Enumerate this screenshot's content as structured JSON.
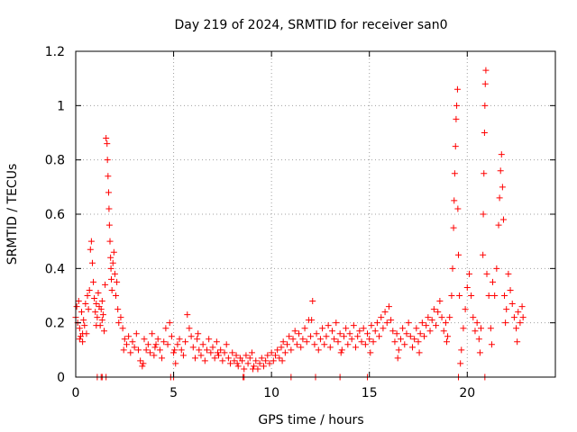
{
  "chart_data": {
    "type": "scatter",
    "title": "Day 219 of 2024, SRMTID for receiver san0",
    "xlabel": "GPS time / hours",
    "ylabel": "SRMTID / TECUs",
    "xlim": [
      0,
      24.5
    ],
    "ylim": [
      0,
      1.2
    ],
    "xticks": [
      0,
      5,
      10,
      15,
      20
    ],
    "xtick_labels": [
      "0",
      "5",
      "10",
      "15",
      "20"
    ],
    "yticks": [
      0,
      0.2,
      0.4,
      0.6,
      0.8,
      1.0,
      1.2
    ],
    "ytick_labels": [
      "0",
      "0.2",
      "0.4",
      "0.6",
      "0.8",
      "1",
      "1.2"
    ],
    "grid": true,
    "marker": "+",
    "color": "#ff0000",
    "series": [
      {
        "name": "SRMTID",
        "points": [
          [
            0.0,
            0.22
          ],
          [
            0.05,
            0.26
          ],
          [
            0.1,
            0.2
          ],
          [
            0.15,
            0.28
          ],
          [
            0.2,
            0.18
          ],
          [
            0.25,
            0.15
          ],
          [
            0.3,
            0.24
          ],
          [
            0.35,
            0.13
          ],
          [
            0.4,
            0.21
          ],
          [
            0.45,
            0.19
          ],
          [
            0.5,
            0.27
          ],
          [
            0.55,
            0.16
          ],
          [
            0.6,
            0.3
          ],
          [
            0.65,
            0.25
          ],
          [
            0.7,
            0.32
          ],
          [
            0.75,
            0.47
          ],
          [
            0.8,
            0.5
          ],
          [
            0.85,
            0.42
          ],
          [
            0.9,
            0.35
          ],
          [
            0.95,
            0.29
          ],
          [
            1.0,
            0.24
          ],
          [
            1.05,
            0.27
          ],
          [
            1.1,
            0.22
          ],
          [
            1.15,
            0.31
          ],
          [
            1.2,
            0.26
          ],
          [
            1.25,
            0.19
          ],
          [
            1.3,
            0.25
          ],
          [
            1.35,
            0.21
          ],
          [
            1.4,
            0.23
          ],
          [
            1.45,
            0.17
          ],
          [
            1.5,
            0.34
          ],
          [
            1.55,
            0.88
          ],
          [
            1.6,
            0.86
          ],
          [
            1.62,
            0.8
          ],
          [
            1.65,
            0.74
          ],
          [
            1.68,
            0.68
          ],
          [
            1.7,
            0.62
          ],
          [
            1.72,
            0.56
          ],
          [
            1.75,
            0.5
          ],
          [
            1.78,
            0.44
          ],
          [
            1.8,
            0.4
          ],
          [
            1.82,
            0.36
          ],
          [
            1.85,
            0.32
          ],
          [
            1.9,
            0.42
          ],
          [
            1.95,
            0.46
          ],
          [
            2.0,
            0.38
          ],
          [
            2.05,
            0.3
          ],
          [
            2.1,
            0.35
          ],
          [
            2.15,
            0.25
          ],
          [
            2.2,
            0.2
          ],
          [
            2.3,
            0.22
          ],
          [
            2.4,
            0.18
          ],
          [
            2.5,
            0.14
          ],
          [
            2.6,
            0.12
          ],
          [
            2.7,
            0.15
          ],
          [
            2.8,
            0.09
          ],
          [
            2.9,
            0.13
          ],
          [
            3.0,
            0.11
          ],
          [
            3.1,
            0.16
          ],
          [
            3.2,
            0.1
          ],
          [
            3.3,
            0.06
          ],
          [
            3.4,
            0.04
          ],
          [
            3.5,
            0.14
          ],
          [
            3.6,
            0.1
          ],
          [
            3.7,
            0.12
          ],
          [
            3.8,
            0.09
          ],
          [
            3.9,
            0.16
          ],
          [
            4.0,
            0.08
          ],
          [
            4.1,
            0.12
          ],
          [
            4.2,
            0.14
          ],
          [
            4.3,
            0.1
          ],
          [
            4.4,
            0.07
          ],
          [
            4.5,
            0.13
          ],
          [
            4.6,
            0.18
          ],
          [
            4.7,
            0.12
          ],
          [
            4.8,
            0.2
          ],
          [
            4.9,
            0.15
          ],
          [
            5.0,
            0.09
          ],
          [
            5.1,
            0.05
          ],
          [
            5.2,
            0.12
          ],
          [
            5.3,
            0.14
          ],
          [
            5.4,
            0.1
          ],
          [
            5.5,
            0.08
          ],
          [
            5.6,
            0.13
          ],
          [
            5.7,
            0.23
          ],
          [
            5.8,
            0.18
          ],
          [
            5.9,
            0.15
          ],
          [
            6.0,
            0.11
          ],
          [
            6.1,
            0.07
          ],
          [
            6.2,
            0.14
          ],
          [
            6.3,
            0.1
          ],
          [
            6.4,
            0.08
          ],
          [
            6.5,
            0.12
          ],
          [
            6.6,
            0.06
          ],
          [
            6.7,
            0.1
          ],
          [
            6.8,
            0.14
          ],
          [
            6.9,
            0.09
          ],
          [
            7.0,
            0.11
          ],
          [
            7.1,
            0.07
          ],
          [
            7.2,
            0.13
          ],
          [
            7.3,
            0.08
          ],
          [
            7.4,
            0.1
          ],
          [
            7.5,
            0.06
          ],
          [
            7.6,
            0.09
          ],
          [
            7.7,
            0.12
          ],
          [
            7.8,
            0.07
          ],
          [
            7.9,
            0.05
          ],
          [
            8.0,
            0.09
          ],
          [
            8.1,
            0.06
          ],
          [
            8.2,
            0.08
          ],
          [
            8.3,
            0.04
          ],
          [
            8.4,
            0.07
          ],
          [
            8.5,
            0.06
          ],
          [
            8.6,
            0.03
          ],
          [
            8.7,
            0.08
          ],
          [
            8.8,
            0.05
          ],
          [
            8.9,
            0.07
          ],
          [
            9.0,
            0.09
          ],
          [
            9.1,
            0.04
          ],
          [
            9.2,
            0.06
          ],
          [
            9.3,
            0.03
          ],
          [
            9.4,
            0.05
          ],
          [
            9.5,
            0.07
          ],
          [
            9.6,
            0.04
          ],
          [
            9.7,
            0.06
          ],
          [
            9.8,
            0.08
          ],
          [
            9.9,
            0.05
          ],
          [
            10.0,
            0.09
          ],
          [
            10.1,
            0.06
          ],
          [
            10.2,
            0.08
          ],
          [
            10.3,
            0.1
          ],
          [
            10.4,
            0.07
          ],
          [
            10.5,
            0.11
          ],
          [
            10.6,
            0.13
          ],
          [
            10.7,
            0.09
          ],
          [
            10.8,
            0.12
          ],
          [
            10.9,
            0.15
          ],
          [
            11.0,
            0.1
          ],
          [
            11.1,
            0.14
          ],
          [
            11.2,
            0.17
          ],
          [
            11.3,
            0.12
          ],
          [
            11.4,
            0.16
          ],
          [
            11.5,
            0.11
          ],
          [
            11.6,
            0.14
          ],
          [
            11.7,
            0.18
          ],
          [
            11.8,
            0.13
          ],
          [
            11.9,
            0.21
          ],
          [
            12.0,
            0.15
          ],
          [
            12.1,
            0.28
          ],
          [
            12.2,
            0.12
          ],
          [
            12.3,
            0.16
          ],
          [
            12.4,
            0.1
          ],
          [
            12.5,
            0.14
          ],
          [
            12.6,
            0.18
          ],
          [
            12.7,
            0.12
          ],
          [
            12.8,
            0.15
          ],
          [
            12.9,
            0.19
          ],
          [
            13.0,
            0.11
          ],
          [
            13.1,
            0.17
          ],
          [
            13.2,
            0.14
          ],
          [
            13.3,
            0.2
          ],
          [
            13.4,
            0.13
          ],
          [
            13.5,
            0.16
          ],
          [
            13.6,
            0.1
          ],
          [
            13.7,
            0.15
          ],
          [
            13.8,
            0.18
          ],
          [
            13.9,
            0.12
          ],
          [
            14.0,
            0.16
          ],
          [
            14.1,
            0.14
          ],
          [
            14.2,
            0.19
          ],
          [
            14.3,
            0.11
          ],
          [
            14.4,
            0.15
          ],
          [
            14.5,
            0.17
          ],
          [
            14.6,
            0.13
          ],
          [
            14.7,
            0.18
          ],
          [
            14.8,
            0.12
          ],
          [
            14.9,
            0.16
          ],
          [
            15.0,
            0.14
          ],
          [
            15.1,
            0.19
          ],
          [
            15.2,
            0.13
          ],
          [
            15.3,
            0.17
          ],
          [
            15.4,
            0.2
          ],
          [
            15.5,
            0.15
          ],
          [
            15.6,
            0.22
          ],
          [
            15.7,
            0.18
          ],
          [
            15.8,
            0.24
          ],
          [
            15.9,
            0.2
          ],
          [
            16.0,
            0.26
          ],
          [
            16.1,
            0.21
          ],
          [
            16.2,
            0.17
          ],
          [
            16.3,
            0.13
          ],
          [
            16.4,
            0.16
          ],
          [
            16.5,
            0.1
          ],
          [
            16.6,
            0.14
          ],
          [
            16.7,
            0.18
          ],
          [
            16.8,
            0.12
          ],
          [
            16.9,
            0.16
          ],
          [
            17.0,
            0.2
          ],
          [
            17.1,
            0.15
          ],
          [
            17.2,
            0.11
          ],
          [
            17.3,
            0.14
          ],
          [
            17.4,
            0.18
          ],
          [
            17.5,
            0.13
          ],
          [
            17.6,
            0.16
          ],
          [
            17.7,
            0.2
          ],
          [
            17.8,
            0.15
          ],
          [
            17.9,
            0.19
          ],
          [
            18.0,
            0.22
          ],
          [
            18.1,
            0.17
          ],
          [
            18.2,
            0.21
          ],
          [
            18.3,
            0.25
          ],
          [
            18.4,
            0.19
          ],
          [
            18.5,
            0.24
          ],
          [
            18.6,
            0.28
          ],
          [
            18.7,
            0.22
          ],
          [
            18.8,
            0.17
          ],
          [
            18.9,
            0.2
          ],
          [
            19.0,
            0.15
          ],
          [
            19.1,
            0.22
          ],
          [
            19.2,
            0.3
          ],
          [
            19.25,
            0.4
          ],
          [
            19.3,
            0.55
          ],
          [
            19.33,
            0.65
          ],
          [
            19.36,
            0.75
          ],
          [
            19.4,
            0.85
          ],
          [
            19.43,
            0.95
          ],
          [
            19.46,
            1.0
          ],
          [
            19.5,
            1.06
          ],
          [
            19.52,
            0.62
          ],
          [
            19.55,
            0.45
          ],
          [
            19.6,
            0.3
          ],
          [
            19.7,
            0.1
          ],
          [
            19.8,
            0.18
          ],
          [
            19.9,
            0.25
          ],
          [
            20.0,
            0.33
          ],
          [
            20.1,
            0.38
          ],
          [
            20.2,
            0.3
          ],
          [
            20.3,
            0.22
          ],
          [
            20.4,
            0.17
          ],
          [
            20.5,
            0.2
          ],
          [
            20.6,
            0.14
          ],
          [
            20.7,
            0.18
          ],
          [
            20.8,
            0.45
          ],
          [
            20.82,
            0.6
          ],
          [
            20.85,
            0.75
          ],
          [
            20.88,
            0.9
          ],
          [
            20.9,
            1.0
          ],
          [
            20.92,
            1.08
          ],
          [
            20.95,
            1.13
          ],
          [
            21.0,
            0.38
          ],
          [
            21.1,
            0.3
          ],
          [
            21.2,
            0.18
          ],
          [
            21.3,
            0.35
          ],
          [
            21.4,
            0.3
          ],
          [
            21.5,
            0.4
          ],
          [
            21.6,
            0.56
          ],
          [
            21.65,
            0.66
          ],
          [
            21.7,
            0.76
          ],
          [
            21.75,
            0.82
          ],
          [
            21.8,
            0.7
          ],
          [
            21.85,
            0.58
          ],
          [
            21.9,
            0.3
          ],
          [
            21.95,
            0.2
          ],
          [
            22.0,
            0.25
          ],
          [
            22.1,
            0.38
          ],
          [
            22.2,
            0.32
          ],
          [
            22.3,
            0.27
          ],
          [
            22.4,
            0.22
          ],
          [
            22.5,
            0.18
          ],
          [
            22.6,
            0.24
          ],
          [
            22.7,
            0.2
          ],
          [
            22.8,
            0.26
          ],
          [
            22.85,
            0.22
          ],
          [
            0.2,
            0.14
          ],
          [
            0.35,
            0.16
          ],
          [
            1.05,
            0.19
          ],
          [
            1.35,
            0.28
          ],
          [
            2.45,
            0.1
          ],
          [
            3.45,
            0.05
          ],
          [
            4.05,
            0.11
          ],
          [
            5.05,
            0.1
          ],
          [
            6.25,
            0.16
          ],
          [
            7.25,
            0.09
          ],
          [
            8.25,
            0.05
          ],
          [
            9.05,
            0.03
          ],
          [
            10.55,
            0.06
          ],
          [
            12.05,
            0.21
          ],
          [
            13.55,
            0.09
          ],
          [
            15.05,
            0.09
          ],
          [
            16.45,
            0.07
          ],
          [
            17.55,
            0.09
          ],
          [
            18.95,
            0.13
          ],
          [
            19.65,
            0.05
          ],
          [
            20.65,
            0.09
          ],
          [
            21.25,
            0.12
          ],
          [
            22.55,
            0.13
          ],
          [
            1.1,
            0.0
          ],
          [
            1.3,
            0.0
          ],
          [
            1.35,
            0.0
          ],
          [
            1.55,
            0.0
          ],
          [
            4.85,
            0.0
          ],
          [
            5.0,
            0.0
          ],
          [
            8.55,
            0.0
          ],
          [
            8.6,
            0.0
          ],
          [
            11.0,
            0.0
          ],
          [
            12.25,
            0.0
          ],
          [
            13.5,
            0.0
          ],
          [
            14.9,
            0.0
          ],
          [
            19.55,
            0.0
          ],
          [
            20.9,
            0.0
          ]
        ]
      }
    ]
  }
}
